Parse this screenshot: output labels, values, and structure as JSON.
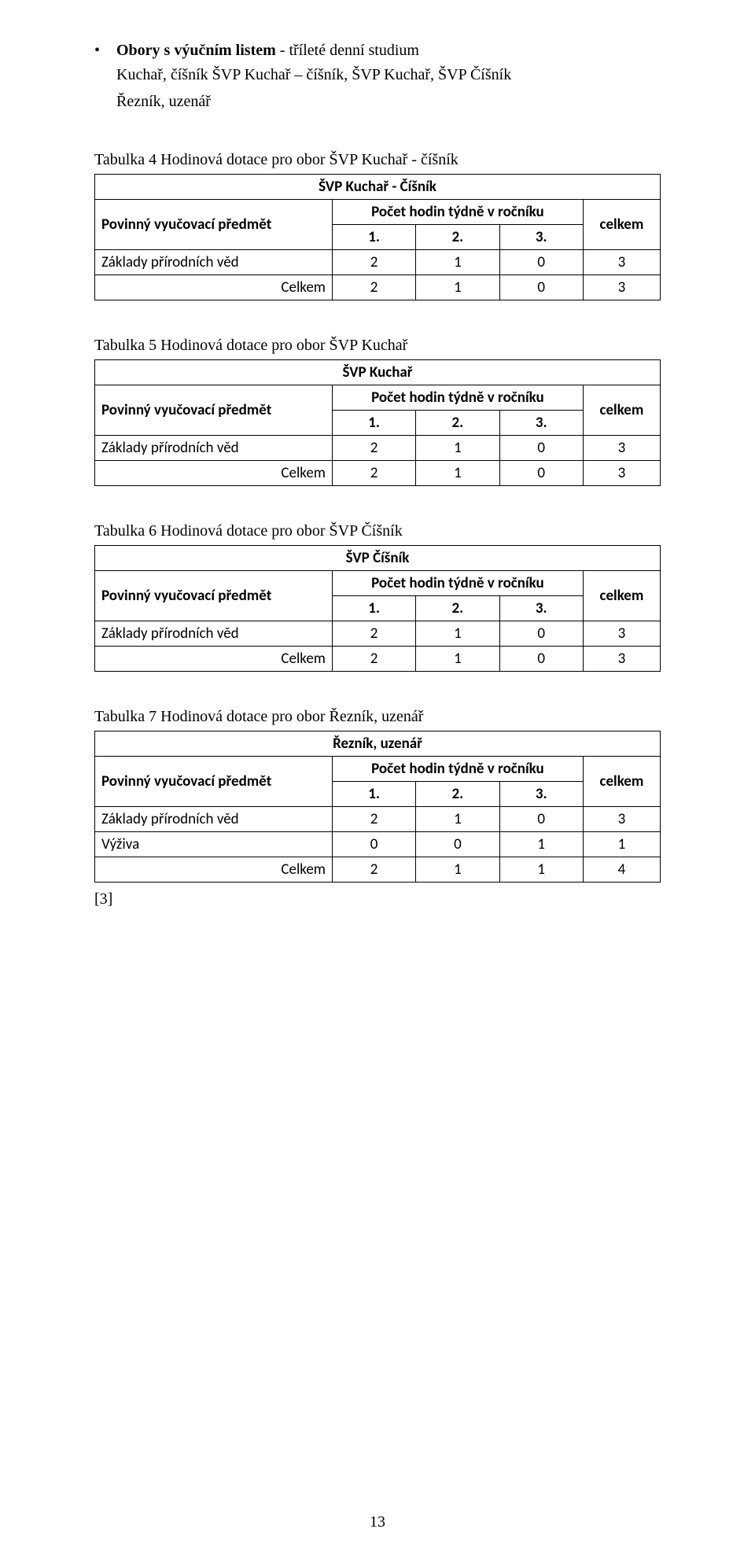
{
  "heading": {
    "bold": "Obory s výučním listem",
    "normal": " - tříleté denní studium",
    "line2": "Kuchař, číšník ŠVP Kuchař – číšník, ŠVP Kuchař, ŠVP Číšník",
    "line3": "Řezník, uzenář"
  },
  "common": {
    "subject_header": "Povinný vyučovací předmět",
    "hours_header": "Počet hodin týdně v ročníku",
    "celkem_header": "celkem",
    "y1": "1.",
    "y2": "2.",
    "y3": "3.",
    "row_celkem": "Celkem",
    "subject_zpv": "Základy přírodních věd",
    "subject_vyziva": "Výživa"
  },
  "tables": {
    "t4": {
      "caption": "Tabulka 4 Hodinová dotace pro obor ŠVP Kuchař - číšník",
      "program": "ŠVP Kuchař - Číšník",
      "r1": {
        "v1": "2",
        "v2": "1",
        "v3": "0",
        "sum": "3"
      },
      "tot": {
        "v1": "2",
        "v2": "1",
        "v3": "0",
        "sum": "3"
      }
    },
    "t5": {
      "caption": "Tabulka 5 Hodinová dotace pro obor ŠVP Kuchař",
      "program": "ŠVP Kuchař",
      "r1": {
        "v1": "2",
        "v2": "1",
        "v3": "0",
        "sum": "3"
      },
      "tot": {
        "v1": "2",
        "v2": "1",
        "v3": "0",
        "sum": "3"
      }
    },
    "t6": {
      "caption": "Tabulka 6 Hodinová dotace pro obor ŠVP Číšník",
      "program": "ŠVP Číšník",
      "r1": {
        "v1": "2",
        "v2": "1",
        "v3": "0",
        "sum": "3"
      },
      "tot": {
        "v1": "2",
        "v2": "1",
        "v3": "0",
        "sum": "3"
      }
    },
    "t7": {
      "caption": "Tabulka 7 Hodinová dotace pro obor Řezník, uzenář",
      "program": "Řezník, uzenář",
      "r1": {
        "v1": "2",
        "v2": "1",
        "v3": "0",
        "sum": "3"
      },
      "r2": {
        "v1": "0",
        "v2": "0",
        "v3": "1",
        "sum": "1"
      },
      "tot": {
        "v1": "2",
        "v2": "1",
        "v3": "1",
        "sum": "4"
      }
    }
  },
  "ref": "[3]",
  "page_number": "13",
  "style": {
    "background": "#ffffff",
    "text_color": "#000000",
    "border_color": "#000000",
    "serif_font": "Times New Roman",
    "sans_font": "Calibri",
    "body_fontsize_pt": 12,
    "table_fontsize_pt": 11,
    "col_widths_pct": [
      42,
      14.5,
      14.5,
      14.5,
      14.5
    ]
  }
}
